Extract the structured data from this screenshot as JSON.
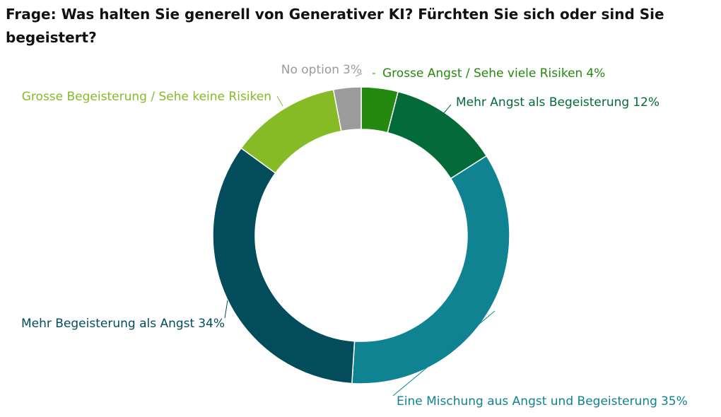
{
  "chart_data": {
    "type": "donut",
    "title": "Frage: Was halten Sie generell von Generativer KI? Fürchten Sie sich oder sind Sie begeistert?",
    "categories": [
      "Grosse Angst / Sehe viele Risiken",
      "Mehr Angst als Begeisterung",
      "Eine Mischung aus Angst und Begeisterung",
      "Mehr Begeisterung als Angst",
      "Grosse Begeisterung / Sehe keine Risiken",
      "No option"
    ],
    "values": [
      4,
      12,
      35,
      34,
      12,
      3
    ],
    "value_labels": [
      "4%",
      "12%",
      "35%",
      "34%",
      null,
      "3%"
    ],
    "colors": [
      "#24890f",
      "#046a3a",
      "#0f8391",
      "#024c5b",
      "#86bb26",
      "#9b9b9b"
    ]
  }
}
